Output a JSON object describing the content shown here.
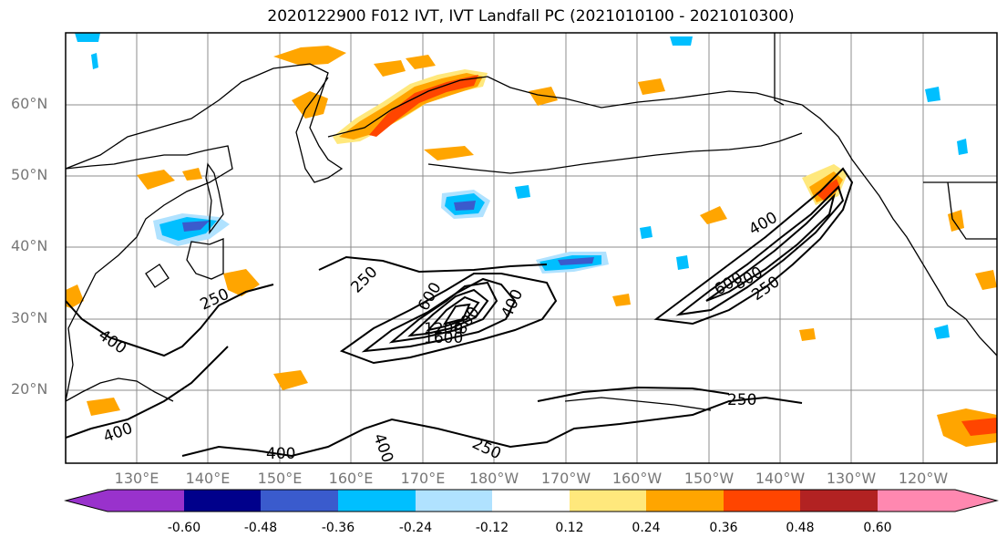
{
  "title": "2020122900 F012 IVT, IVT Landfall PC (2021010100 - 2021010300)",
  "map": {
    "lat_labels": [
      "60°N",
      "50°N",
      "40°N",
      "30°N",
      "20°N"
    ],
    "lon_labels": [
      "130°E",
      "140°E",
      "150°E",
      "160°E",
      "170°E",
      "180°W",
      "170°W",
      "160°W",
      "150°W",
      "140°W",
      "130°W",
      "120°W"
    ],
    "contour_labels": [
      "250",
      "400",
      "600",
      "800",
      "1200",
      "1600",
      "250",
      "400",
      "250",
      "400",
      "400",
      "400",
      "250",
      "400",
      "600",
      "800",
      "250"
    ]
  },
  "colorbar": {
    "colors": [
      "#9932CC",
      "#00008B",
      "#3A5BCD",
      "#00BFFF",
      "#B0E2FF",
      "#FFFFFF",
      "#FFE87C",
      "#FFA500",
      "#FF4500",
      "#B22222",
      "#FF88B0"
    ],
    "tick_labels": [
      "-0.60",
      "-0.48",
      "-0.36",
      "-0.24",
      "-0.12",
      "0.12",
      "0.24",
      "0.36",
      "0.48",
      "0.60"
    ]
  }
}
